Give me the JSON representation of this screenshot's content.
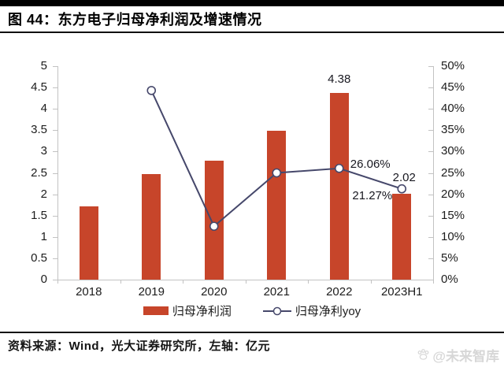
{
  "header": {
    "title": "图 44：东方电子归母净利润及增速情况"
  },
  "footer": {
    "source": "资料来源：Wind，光大证券研究所，左轴：亿元",
    "watermark": "@未来智库"
  },
  "colors": {
    "bar": "#c7452a",
    "line": "#46486b",
    "marker_fill": "#ffffff",
    "axis": "#c2c2c2",
    "text": "#1c1c1c",
    "watermark": "#d7d7d7"
  },
  "chart_data": {
    "type": "bar+line",
    "categories": [
      "2018",
      "2019",
      "2020",
      "2021",
      "2022",
      "2023H1"
    ],
    "series": [
      {
        "name": "归母净利润",
        "type": "bar",
        "axis": "left",
        "unit": "亿元",
        "values": [
          1.71,
          2.47,
          2.79,
          3.48,
          4.38,
          2.02
        ],
        "data_labels": [
          {
            "category": "2022",
            "text": "4.38",
            "placement": "above-bar"
          },
          {
            "category": "2023H1",
            "text": "2.02",
            "placement": "above-marker"
          }
        ]
      },
      {
        "name": "归母净利yoy",
        "type": "line",
        "axis": "right",
        "unit": "%",
        "values": [
          null,
          44.3,
          12.5,
          25.0,
          26.06,
          21.27
        ],
        "data_labels": [
          {
            "category": "2022",
            "text": "26.06%",
            "placement": "right-of-marker"
          },
          {
            "category": "2023H1",
            "text": "21.27%",
            "placement": "left-of-marker"
          }
        ]
      }
    ],
    "left_axis": {
      "min": 0,
      "max": 5,
      "step": 0.5,
      "tick_labels": [
        "0",
        "0.5",
        "1",
        "1.5",
        "2",
        "2.5",
        "3",
        "3.5",
        "4",
        "4.5",
        "5"
      ]
    },
    "right_axis": {
      "min": 0,
      "max": 50,
      "step": 5,
      "tick_labels": [
        "0%",
        "5%",
        "10%",
        "15%",
        "20%",
        "25%",
        "30%",
        "35%",
        "40%",
        "45%",
        "50%"
      ]
    },
    "grid": false,
    "legend_position": "bottom"
  }
}
